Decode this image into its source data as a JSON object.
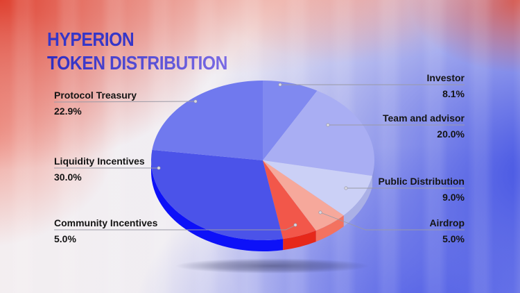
{
  "title": {
    "line1": "HYPERION",
    "line2": "TOKEN DISTRIBUTION"
  },
  "style": {
    "title_color_start": "#2d2cc2",
    "title_color_end": "#7a6be4",
    "background_left_accent": "#de3826",
    "background_right_accent": "#3a4ae2",
    "label_text_color": "#141414",
    "leader_line_color": "#9a9aa6"
  },
  "chart_data": {
    "type": "pie",
    "title": "HYPERION TOKEN DISTRIBUTION",
    "style_3d": true,
    "start_angle_deg": 0,
    "direction": "clockwise",
    "slices": [
      {
        "label": "Investor",
        "value": 8.1,
        "pct_label": "8.1%",
        "color": "#8089f0",
        "side_color": "#5f68d8"
      },
      {
        "label": "Team and advisor",
        "value": 20.0,
        "pct_label": "20.0%",
        "color": "#a9aef3",
        "side_color": "#8a92e0"
      },
      {
        "label": "Public Distribution",
        "value": 9.0,
        "pct_label": "9.0%",
        "color": "#cbd0f6",
        "side_color": "#aab0e6"
      },
      {
        "label": "Airdrop",
        "value": 5.0,
        "pct_label": "5.0%",
        "color": "#f6a89b",
        "side_color": "#f37260"
      },
      {
        "label": "Community Incentives",
        "value": 5.0,
        "pct_label": "5.0%",
        "color": "#f2574a",
        "side_color": "#e6281a"
      },
      {
        "label": "Liquidity Incentives",
        "value": 30.0,
        "pct_label": "30.0%",
        "color": "#4b53e9",
        "side_color": "#0d11f8"
      },
      {
        "label": "Protocol Treasury",
        "value": 22.9,
        "pct_label": "22.9%",
        "color": "#7079ee",
        "side_color": "#4a52d0"
      }
    ]
  }
}
